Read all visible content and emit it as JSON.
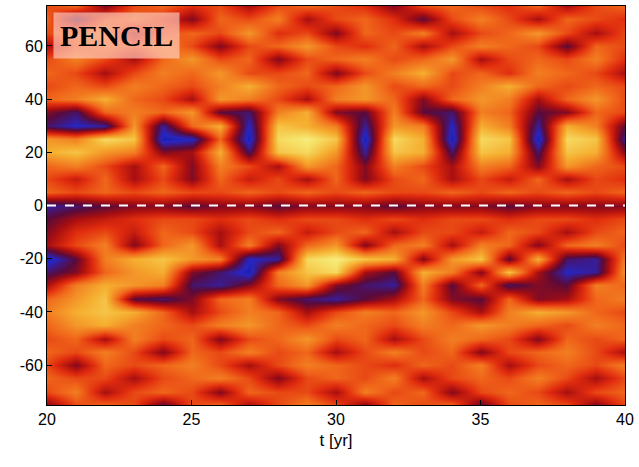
{
  "chart_data": {
    "type": "heatmap",
    "x_label": "t [yr]",
    "annotations": [
      {
        "text": "PENCIL"
      }
    ],
    "hline": {
      "y": 0,
      "line_style": "dash"
    },
    "xlim": [
      20,
      40
    ],
    "xticks": [
      20,
      25,
      30,
      35,
      40
    ],
    "ylim": [
      -75,
      75
    ],
    "yticks": [
      -60,
      -40,
      -20,
      0,
      20,
      40,
      60
    ],
    "zlim": [
      -10,
      10
    ],
    "x": [
      20,
      21,
      22,
      23,
      24,
      25,
      26,
      27,
      28,
      29,
      30,
      31,
      32,
      33,
      34,
      35,
      36,
      37,
      38,
      39,
      40
    ],
    "y": [
      -75,
      -70,
      -65,
      -60,
      -55,
      -50,
      -45,
      -40,
      -35,
      -30,
      -25,
      -20,
      -15,
      -10,
      -5,
      0,
      5,
      10,
      15,
      20,
      25,
      30,
      35,
      40,
      45,
      50,
      55,
      60,
      65,
      70,
      75
    ],
    "z": [
      [
        -3,
        1,
        2,
        1,
        -4,
        1,
        2,
        -2,
        1,
        3,
        1,
        -3,
        2,
        1,
        2,
        -4,
        1,
        2,
        1,
        -3,
        1
      ],
      [
        1,
        3,
        -2,
        1,
        2,
        1,
        -3,
        2,
        1,
        1,
        -2,
        3,
        1,
        2,
        -3,
        1,
        2,
        1,
        -2,
        1,
        2
      ],
      [
        2,
        1,
        1,
        -2,
        1,
        2,
        3,
        1,
        -3,
        1,
        2,
        1,
        3,
        -2,
        1,
        2,
        1,
        3,
        1,
        -2,
        1
      ],
      [
        1,
        -3,
        2,
        1,
        2,
        3,
        1,
        -2,
        1,
        3,
        2,
        1,
        0,
        2,
        1,
        3,
        -2,
        1,
        2,
        1,
        3
      ],
      [
        2,
        1,
        3,
        1,
        -3,
        2,
        1,
        3,
        1,
        2,
        -2,
        1,
        3,
        1,
        2,
        -3,
        1,
        2,
        3,
        1,
        -2
      ],
      [
        1,
        2,
        -2,
        3,
        1,
        2,
        -3,
        1,
        2,
        4,
        1,
        2,
        -2,
        1,
        3,
        2,
        1,
        -3,
        2,
        1,
        2
      ],
      [
        2,
        4,
        5,
        3,
        2,
        1,
        3,
        4,
        2,
        1,
        3,
        2,
        1,
        3,
        2,
        4,
        3,
        2,
        1,
        3,
        2
      ],
      [
        3,
        5,
        6,
        5,
        2,
        -2,
        1,
        3,
        2,
        -2,
        1,
        3,
        2,
        4,
        1,
        -2,
        3,
        5,
        4,
        2,
        1
      ],
      [
        2,
        4,
        6,
        -4,
        -5,
        -3,
        2,
        3,
        -3,
        -5,
        -6,
        -4,
        -2,
        2,
        -3,
        -4,
        2,
        -3,
        -2,
        2,
        3
      ],
      [
        -2,
        3,
        5,
        4,
        3,
        -5,
        -6,
        -3,
        2,
        4,
        -3,
        -5,
        -6,
        3,
        -4,
        2,
        -5,
        -3,
        -4,
        3,
        2
      ],
      [
        -5,
        -3,
        2,
        4,
        5,
        -3,
        -5,
        -8,
        3,
        6,
        7,
        -2,
        -4,
        5,
        3,
        -3,
        6,
        -2,
        -7,
        -6,
        4
      ],
      [
        -8,
        -4,
        3,
        5,
        6,
        4,
        3,
        -7,
        -6,
        7,
        8,
        6,
        5,
        -3,
        4,
        6,
        -4,
        5,
        -5,
        -6,
        3
      ],
      [
        -2,
        1,
        3,
        -3,
        2,
        4,
        -2,
        3,
        -3,
        2,
        4,
        -3,
        2,
        3,
        -2,
        3,
        2,
        -3,
        2,
        3,
        1
      ],
      [
        -3,
        0,
        1,
        -1,
        2,
        1,
        -2,
        1,
        2,
        -1,
        1,
        2,
        -2,
        1,
        1,
        -1,
        2,
        1,
        -2,
        1,
        2
      ],
      [
        -4,
        -2,
        -1,
        0,
        1,
        1,
        0,
        1,
        0,
        1,
        1,
        0,
        1,
        0,
        1,
        1,
        0,
        1,
        1,
        0,
        1
      ],
      [
        -6,
        -5,
        -4,
        -3,
        -3,
        -4,
        -3,
        -3,
        -4,
        -3,
        -3,
        -3,
        -4,
        -3,
        -3,
        -3,
        -4,
        -3,
        -3,
        -3,
        -3
      ],
      [
        2,
        1,
        2,
        1,
        2,
        1,
        1,
        2,
        1,
        2,
        1,
        2,
        1,
        1,
        2,
        1,
        2,
        1,
        2,
        1,
        2
      ],
      [
        1,
        -1,
        2,
        -2,
        1,
        -3,
        2,
        -1,
        1,
        -2,
        2,
        -3,
        1,
        2,
        -2,
        1,
        -1,
        2,
        -2,
        1,
        0
      ],
      [
        2,
        3,
        1,
        -2,
        2,
        -3,
        3,
        1,
        -2,
        4,
        2,
        -3,
        3,
        1,
        -2,
        3,
        2,
        -3,
        4,
        2,
        1
      ],
      [
        5,
        6,
        4,
        3,
        -3,
        -2,
        5,
        -5,
        6,
        7,
        4,
        -6,
        6,
        5,
        -5,
        6,
        5,
        -5,
        6,
        5,
        -3
      ],
      [
        4,
        3,
        7,
        6,
        -8,
        -7,
        2,
        -8,
        7,
        8,
        6,
        -8,
        7,
        5,
        -8,
        7,
        6,
        -8,
        7,
        6,
        -6
      ],
      [
        -5,
        -7,
        -6,
        4,
        -6,
        2,
        5,
        -7,
        6,
        5,
        3,
        -6,
        4,
        3,
        -7,
        5,
        3,
        -6,
        5,
        3,
        -4
      ],
      [
        -3,
        -5,
        2,
        3,
        2,
        4,
        -4,
        -5,
        3,
        5,
        -3,
        -4,
        3,
        -4,
        -5,
        3,
        2,
        -4,
        -3,
        2,
        1
      ],
      [
        2,
        3,
        5,
        2,
        1,
        -2,
        4,
        3,
        1,
        -2,
        3,
        4,
        2,
        -3,
        2,
        4,
        3,
        -2,
        2,
        4,
        1
      ],
      [
        1,
        2,
        1,
        3,
        2,
        1,
        3,
        5,
        2,
        1,
        2,
        4,
        1,
        2,
        1,
        3,
        5,
        2,
        1,
        2,
        1
      ],
      [
        2,
        1,
        -2,
        1,
        3,
        2,
        4,
        1,
        1,
        2,
        -3,
        1,
        3,
        5,
        1,
        2,
        0,
        3,
        2,
        1,
        -2
      ],
      [
        1,
        3,
        1,
        -2,
        2,
        4,
        1,
        2,
        -3,
        1,
        2,
        3,
        1,
        2,
        4,
        -2,
        1,
        2,
        1,
        3,
        0
      ],
      [
        -2,
        1,
        2,
        1,
        3,
        1,
        -3,
        1,
        2,
        4,
        1,
        0,
        2,
        -2,
        1,
        3,
        2,
        1,
        -4,
        2,
        1
      ],
      [
        1,
        2,
        3,
        -2,
        1,
        2,
        1,
        4,
        0,
        1,
        -3,
        2,
        1,
        3,
        -2,
        1,
        2,
        4,
        1,
        -2,
        1
      ],
      [
        2,
        -4,
        1,
        2,
        0,
        -3,
        2,
        1,
        3,
        -2,
        1,
        2,
        0,
        -4,
        1,
        3,
        1,
        -2,
        2,
        1,
        0
      ],
      [
        1,
        2,
        -3,
        1,
        2,
        0,
        1,
        -2,
        1,
        2,
        1,
        0,
        -3,
        1,
        2,
        1,
        0,
        2,
        -2,
        1,
        2
      ]
    ]
  }
}
